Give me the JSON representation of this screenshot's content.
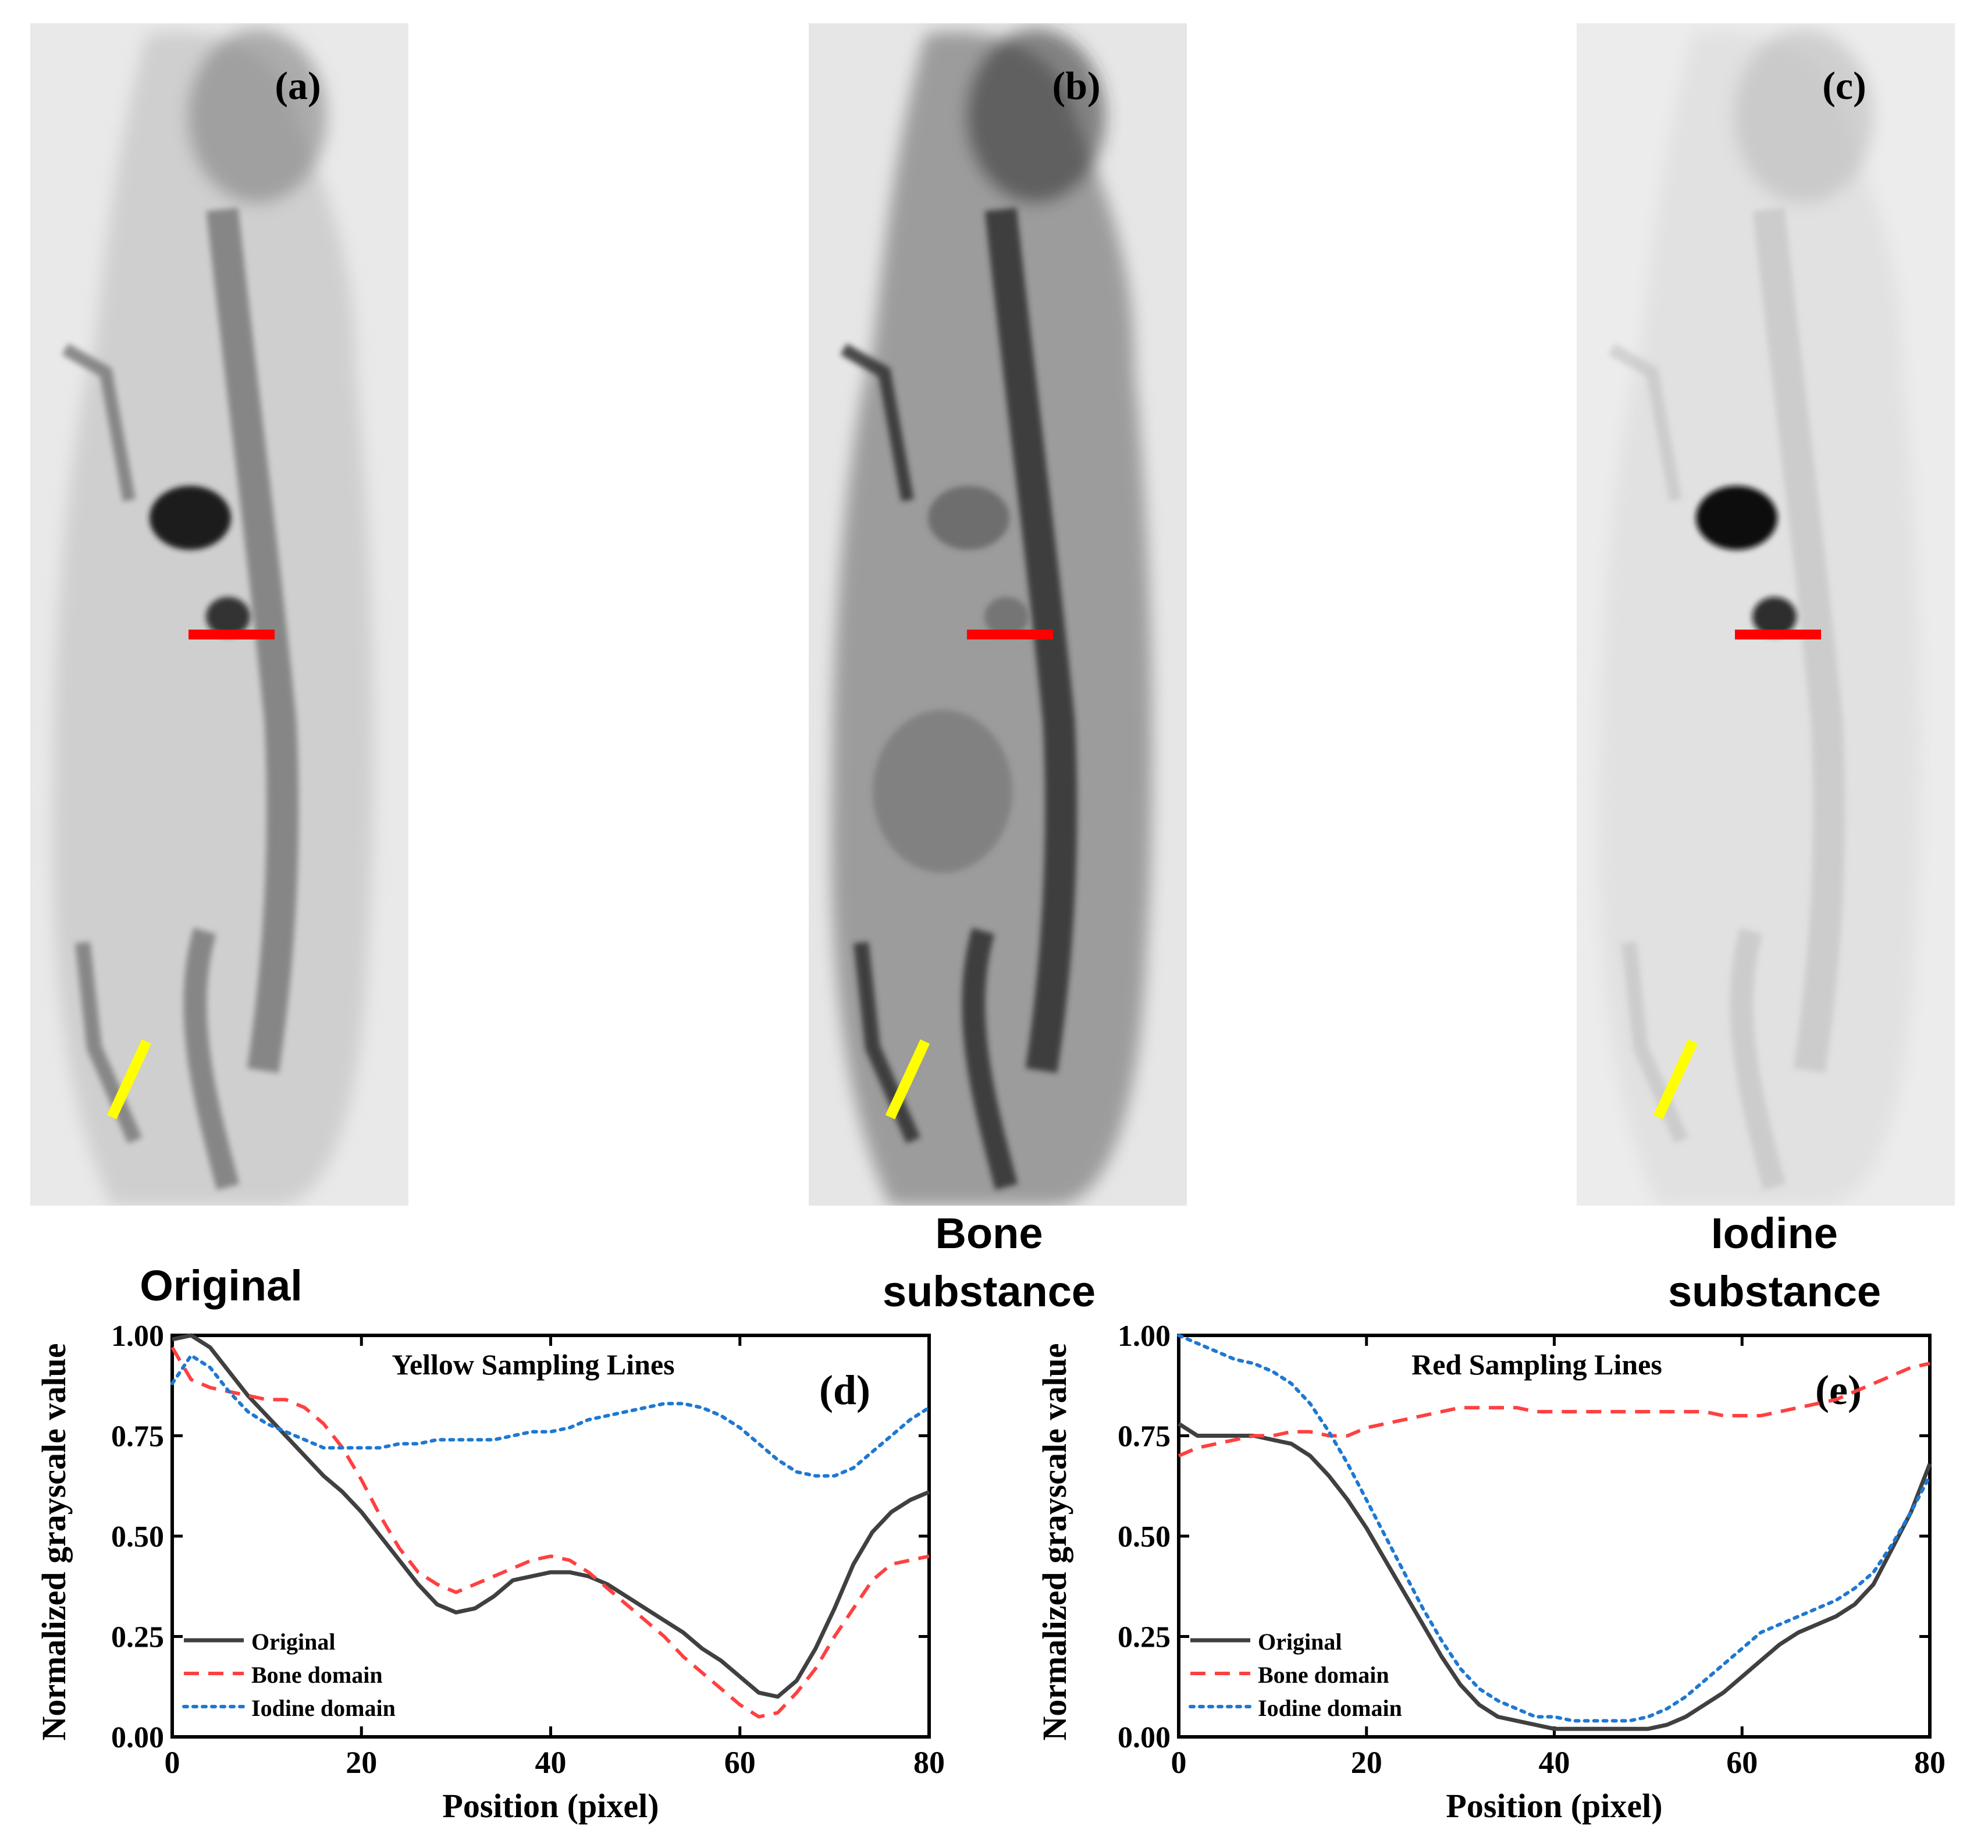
{
  "panels": [
    {
      "letter": "(a)",
      "caption": "Original",
      "style": "original",
      "colors": {
        "bg": "#e9e9e9",
        "body": "#cfcfcf",
        "bone": "#7a7a7a",
        "heart": "#1a1a1a"
      }
    },
    {
      "letter": "(b)",
      "caption": "Bone substance",
      "style": "bone",
      "colors": {
        "bg": "#e6e6e6",
        "body": "#9c9c9c",
        "bone": "#2f2f2f",
        "heart": "#6e6e6e"
      }
    },
    {
      "letter": "(c)",
      "caption": "Iodine substance",
      "style": "iodine",
      "colors": {
        "bg": "#ececec",
        "body": "#e1e1e1",
        "bone": "#b8b8b8",
        "heart": "#0d0d0d"
      }
    }
  ],
  "markers": {
    "red": "#ff0000",
    "yellow": "#ffff00"
  },
  "chart_data": [
    {
      "type": "line",
      "panel_label": "(d)",
      "title": "Yellow Sampling Lines",
      "xlabel": "Position (pixel)",
      "ylabel": "Normalized grayscale value",
      "xlim": [
        0,
        80
      ],
      "ylim": [
        0,
        1
      ],
      "xticks": [
        "0",
        "20",
        "40",
        "60",
        "80"
      ],
      "yticks": [
        "0.00",
        "0.25",
        "0.50",
        "0.75",
        "1.00"
      ],
      "legend_position": "bottom-left",
      "series": [
        {
          "name": "Original",
          "color": "#404040",
          "style": "solid",
          "x": [
            0,
            2,
            4,
            6,
            8,
            10,
            12,
            14,
            16,
            18,
            20,
            22,
            24,
            26,
            28,
            30,
            32,
            34,
            36,
            38,
            40,
            42,
            44,
            46,
            48,
            50,
            52,
            54,
            56,
            58,
            60,
            62,
            64,
            66,
            68,
            70,
            72,
            74,
            76,
            78,
            80
          ],
          "y": [
            0.99,
            1.0,
            0.97,
            0.91,
            0.85,
            0.8,
            0.75,
            0.7,
            0.65,
            0.61,
            0.56,
            0.5,
            0.44,
            0.38,
            0.33,
            0.31,
            0.32,
            0.35,
            0.39,
            0.4,
            0.41,
            0.41,
            0.4,
            0.38,
            0.35,
            0.32,
            0.29,
            0.26,
            0.22,
            0.19,
            0.15,
            0.11,
            0.1,
            0.14,
            0.22,
            0.32,
            0.43,
            0.51,
            0.56,
            0.59,
            0.61
          ]
        },
        {
          "name": "Bone domain",
          "color": "#ff4040",
          "style": "dashed",
          "x": [
            0,
            2,
            4,
            6,
            8,
            10,
            12,
            14,
            16,
            18,
            20,
            22,
            24,
            26,
            28,
            30,
            32,
            34,
            36,
            38,
            40,
            42,
            44,
            46,
            48,
            50,
            52,
            54,
            56,
            58,
            60,
            62,
            64,
            66,
            68,
            70,
            72,
            74,
            76,
            78,
            80
          ],
          "y": [
            0.97,
            0.89,
            0.87,
            0.86,
            0.85,
            0.84,
            0.84,
            0.82,
            0.78,
            0.72,
            0.64,
            0.55,
            0.47,
            0.41,
            0.38,
            0.36,
            0.38,
            0.4,
            0.42,
            0.44,
            0.45,
            0.44,
            0.41,
            0.37,
            0.33,
            0.29,
            0.25,
            0.2,
            0.16,
            0.12,
            0.08,
            0.05,
            0.06,
            0.11,
            0.17,
            0.25,
            0.32,
            0.39,
            0.43,
            0.44,
            0.45
          ]
        },
        {
          "name": "Iodine domain",
          "color": "#1e78d2",
          "style": "dotted",
          "x": [
            0,
            2,
            4,
            6,
            8,
            10,
            12,
            14,
            16,
            18,
            20,
            22,
            24,
            26,
            28,
            30,
            32,
            34,
            36,
            38,
            40,
            42,
            44,
            46,
            48,
            50,
            52,
            54,
            56,
            58,
            60,
            62,
            64,
            66,
            68,
            70,
            72,
            74,
            76,
            78,
            80
          ],
          "y": [
            0.88,
            0.95,
            0.92,
            0.86,
            0.81,
            0.78,
            0.76,
            0.74,
            0.72,
            0.72,
            0.72,
            0.72,
            0.73,
            0.73,
            0.74,
            0.74,
            0.74,
            0.74,
            0.75,
            0.76,
            0.76,
            0.77,
            0.79,
            0.8,
            0.81,
            0.82,
            0.83,
            0.83,
            0.82,
            0.8,
            0.77,
            0.73,
            0.69,
            0.66,
            0.65,
            0.65,
            0.67,
            0.71,
            0.75,
            0.79,
            0.82
          ]
        }
      ]
    },
    {
      "type": "line",
      "panel_label": "(e)",
      "title": "Red Sampling Lines",
      "xlabel": "Position (pixel)",
      "ylabel": "Normalized grayscale value",
      "xlim": [
        0,
        80
      ],
      "ylim": [
        0,
        1
      ],
      "xticks": [
        "0",
        "20",
        "40",
        "60",
        "80"
      ],
      "yticks": [
        "0.00",
        "0.25",
        "0.50",
        "0.75",
        "1.00"
      ],
      "legend_position": "bottom-left",
      "series": [
        {
          "name": "Original",
          "color": "#404040",
          "style": "solid",
          "x": [
            0,
            2,
            4,
            6,
            8,
            10,
            12,
            14,
            16,
            18,
            20,
            22,
            24,
            26,
            28,
            30,
            32,
            34,
            36,
            38,
            40,
            42,
            44,
            46,
            48,
            50,
            52,
            54,
            56,
            58,
            60,
            62,
            64,
            66,
            68,
            70,
            72,
            74,
            76,
            78,
            80
          ],
          "y": [
            0.78,
            0.75,
            0.75,
            0.75,
            0.75,
            0.74,
            0.73,
            0.7,
            0.65,
            0.59,
            0.52,
            0.44,
            0.36,
            0.28,
            0.2,
            0.13,
            0.08,
            0.05,
            0.04,
            0.03,
            0.02,
            0.02,
            0.02,
            0.02,
            0.02,
            0.02,
            0.03,
            0.05,
            0.08,
            0.11,
            0.15,
            0.19,
            0.23,
            0.26,
            0.28,
            0.3,
            0.33,
            0.38,
            0.47,
            0.56,
            0.68
          ]
        },
        {
          "name": "Bone domain",
          "color": "#ff4040",
          "style": "dashed",
          "x": [
            0,
            2,
            4,
            6,
            8,
            10,
            12,
            14,
            16,
            18,
            20,
            22,
            24,
            26,
            28,
            30,
            32,
            34,
            36,
            38,
            40,
            42,
            44,
            46,
            48,
            50,
            52,
            54,
            56,
            58,
            60,
            62,
            64,
            66,
            68,
            70,
            72,
            74,
            76,
            78,
            80
          ],
          "y": [
            0.7,
            0.72,
            0.73,
            0.74,
            0.75,
            0.75,
            0.76,
            0.76,
            0.75,
            0.75,
            0.77,
            0.78,
            0.79,
            0.8,
            0.81,
            0.82,
            0.82,
            0.82,
            0.82,
            0.81,
            0.81,
            0.81,
            0.81,
            0.81,
            0.81,
            0.81,
            0.81,
            0.81,
            0.81,
            0.8,
            0.8,
            0.8,
            0.81,
            0.82,
            0.83,
            0.84,
            0.86,
            0.88,
            0.9,
            0.92,
            0.93
          ]
        },
        {
          "name": "Iodine domain",
          "color": "#1e78d2",
          "style": "dotted",
          "x": [
            0,
            2,
            4,
            6,
            8,
            10,
            12,
            14,
            16,
            18,
            20,
            22,
            24,
            26,
            28,
            30,
            32,
            34,
            36,
            38,
            40,
            42,
            44,
            46,
            48,
            50,
            52,
            54,
            56,
            58,
            60,
            62,
            64,
            66,
            68,
            70,
            72,
            74,
            76,
            78,
            80
          ],
          "y": [
            1.0,
            0.98,
            0.96,
            0.94,
            0.93,
            0.91,
            0.88,
            0.83,
            0.76,
            0.68,
            0.59,
            0.5,
            0.41,
            0.32,
            0.24,
            0.17,
            0.12,
            0.09,
            0.07,
            0.05,
            0.05,
            0.04,
            0.04,
            0.04,
            0.04,
            0.05,
            0.07,
            0.1,
            0.14,
            0.18,
            0.22,
            0.26,
            0.28,
            0.3,
            0.32,
            0.34,
            0.37,
            0.41,
            0.48,
            0.56,
            0.65
          ]
        }
      ]
    }
  ]
}
